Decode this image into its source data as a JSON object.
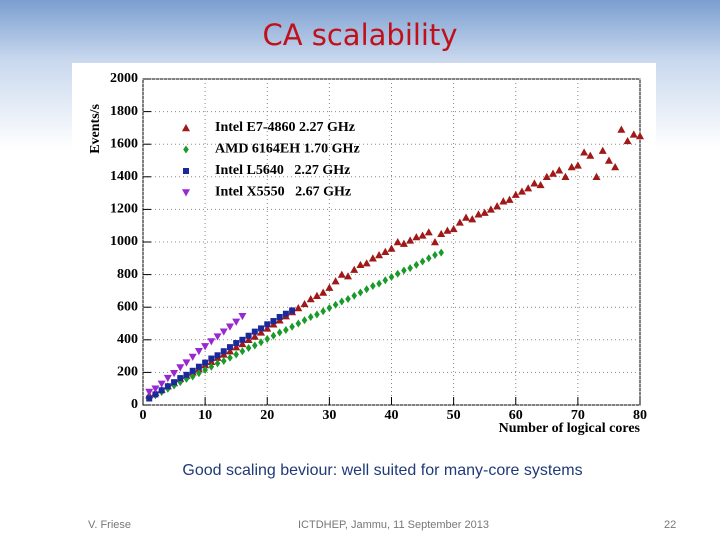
{
  "slide": {
    "title": "CA scalability",
    "caption": "Good scaling beviour: well suited for many-core systems",
    "footer_left": "V. Friese",
    "footer_center": "ICTDHEP, Jammu, 11 September 2013",
    "page_number": "22"
  },
  "chart_data": {
    "type": "scatter",
    "ylabel": "Events/s",
    "xlabel": "Number of logical cores",
    "xlim": [
      0,
      80
    ],
    "ylim": [
      0,
      2000
    ],
    "xticks": [
      0,
      10,
      20,
      30,
      40,
      50,
      60,
      70,
      80
    ],
    "yticks": [
      0,
      200,
      400,
      600,
      800,
      1000,
      1200,
      1400,
      1600,
      1800,
      2000
    ],
    "grid": true,
    "series": [
      {
        "name": "Intel E7-4860 2.27 GHz",
        "color": "#a01818",
        "marker": "triangle-up",
        "x": [
          1,
          2,
          3,
          4,
          5,
          6,
          7,
          8,
          9,
          10,
          11,
          12,
          13,
          14,
          15,
          16,
          17,
          18,
          19,
          20,
          21,
          22,
          23,
          24,
          25,
          26,
          27,
          28,
          29,
          30,
          31,
          32,
          33,
          34,
          35,
          36,
          37,
          38,
          39,
          40,
          41,
          42,
          43,
          44,
          45,
          46,
          47,
          48,
          49,
          50,
          51,
          52,
          53,
          54,
          55,
          56,
          57,
          58,
          59,
          60,
          61,
          62,
          63,
          64,
          65,
          66,
          67,
          68,
          69,
          70,
          71,
          72,
          73,
          74,
          75,
          76,
          77,
          78,
          79,
          80
        ],
        "values": [
          60,
          75,
          95,
          115,
          135,
          160,
          180,
          200,
          220,
          245,
          265,
          290,
          310,
          330,
          355,
          375,
          400,
          420,
          445,
          470,
          495,
          520,
          545,
          570,
          595,
          620,
          650,
          670,
          690,
          720,
          760,
          800,
          790,
          830,
          860,
          870,
          900,
          920,
          940,
          960,
          1000,
          990,
          1010,
          1030,
          1040,
          1060,
          1000,
          1050,
          1070,
          1080,
          1120,
          1150,
          1140,
          1170,
          1180,
          1200,
          1220,
          1250,
          1260,
          1290,
          1310,
          1330,
          1360,
          1350,
          1400,
          1420,
          1440,
          1400,
          1460,
          1470,
          1550,
          1530,
          1400,
          1560,
          1500,
          1460,
          1690,
          1620,
          1660,
          1650
        ]
      },
      {
        "name": "AMD 6164EH 1.70 GHz",
        "color": "#1a9a2a",
        "marker": "diamond",
        "x": [
          1,
          2,
          3,
          4,
          5,
          6,
          7,
          8,
          9,
          10,
          11,
          12,
          13,
          14,
          15,
          16,
          17,
          18,
          19,
          20,
          21,
          22,
          23,
          24,
          25,
          26,
          27,
          28,
          29,
          30,
          31,
          32,
          33,
          34,
          35,
          36,
          37,
          38,
          39,
          40,
          41,
          42,
          43,
          44,
          45,
          46,
          47,
          48
        ],
        "values": [
          45,
          60,
          80,
          100,
          120,
          140,
          160,
          175,
          195,
          215,
          235,
          255,
          270,
          290,
          310,
          330,
          350,
          365,
          385,
          405,
          425,
          445,
          460,
          480,
          500,
          520,
          540,
          555,
          575,
          595,
          615,
          635,
          650,
          670,
          690,
          710,
          730,
          745,
          765,
          785,
          805,
          825,
          840,
          860,
          880,
          900,
          920,
          935
        ]
      },
      {
        "name": "Intel L5640   2.27 GHz",
        "color": "#1a2a9a",
        "marker": "square",
        "x": [
          1,
          2,
          3,
          4,
          5,
          6,
          7,
          8,
          9,
          10,
          11,
          12,
          13,
          14,
          15,
          16,
          17,
          18,
          19,
          20,
          21,
          22,
          23,
          24
        ],
        "values": [
          40,
          65,
          90,
          115,
          140,
          165,
          185,
          210,
          235,
          260,
          285,
          305,
          330,
          355,
          380,
          400,
          425,
          450,
          470,
          495,
          515,
          540,
          560,
          580
        ]
      },
      {
        "name": "Intel X5550   2.67 GHz",
        "color": "#9a28d0",
        "marker": "triangle-down",
        "x": [
          1,
          2,
          3,
          4,
          5,
          6,
          7,
          8,
          9,
          10,
          11,
          12,
          13,
          14,
          15,
          16
        ],
        "values": [
          80,
          100,
          130,
          165,
          195,
          230,
          260,
          295,
          330,
          360,
          390,
          420,
          450,
          480,
          510,
          545
        ]
      }
    ]
  }
}
